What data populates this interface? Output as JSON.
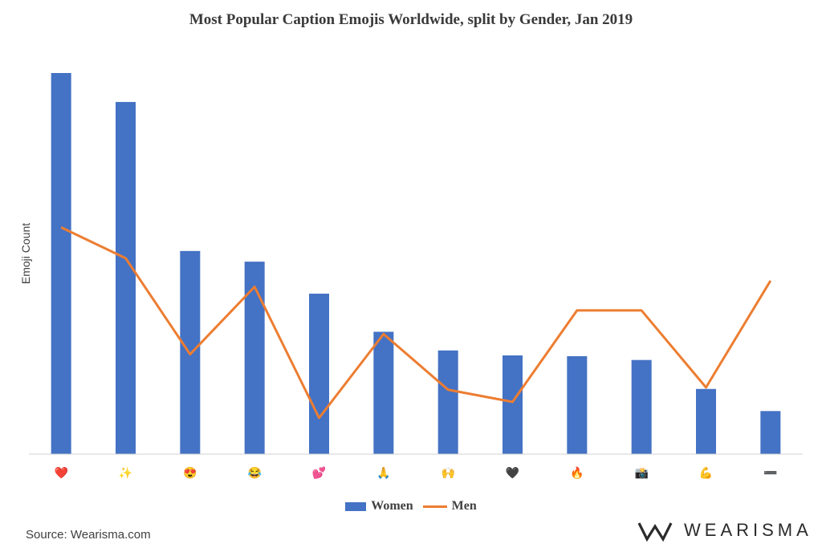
{
  "chart_data": {
    "type": "bar",
    "title": "Most Popular Caption Emojis Worldwide, split by Gender, Jan 2019",
    "ylabel": "Emoji Count",
    "xlabel": "",
    "categories": [
      "❤️",
      "✨",
      "😍",
      "😂",
      "💕",
      "🙏",
      "🙌",
      "🖤",
      "🔥",
      "📸",
      "💪",
      "➖"
    ],
    "ylim": [
      0,
      100
    ],
    "grid": false,
    "legend": "bottom",
    "colors": {
      "Women": "#4472c4",
      "Men": "#ed7d31"
    },
    "series": [
      {
        "name": "Women",
        "type": "bar",
        "values": [
          100,
          92.4,
          53.3,
          50.5,
          42.1,
          32.1,
          27.2,
          25.9,
          25.7,
          24.7,
          17.1,
          11.3
        ]
      },
      {
        "name": "Men",
        "type": "line",
        "values": [
          59.5,
          51.4,
          26.2,
          43.9,
          9.5,
          31.5,
          16.9,
          13.7,
          37.7,
          37.7,
          17.5,
          45.5
        ]
      }
    ]
  },
  "source": "Source: Wearisma.com",
  "brand": "WEARISMA"
}
